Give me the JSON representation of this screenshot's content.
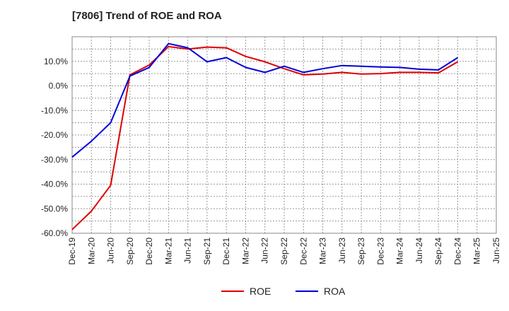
{
  "chart_data": {
    "type": "line",
    "title": "[7806]  Trend of ROE and ROA",
    "xlabel": "",
    "ylabel": "",
    "x": [
      "Dec-19",
      "Mar-20",
      "Jun-20",
      "Sep-20",
      "Dec-20",
      "Mar-21",
      "Jun-21",
      "Sep-21",
      "Dec-21",
      "Mar-22",
      "Jun-22",
      "Sep-22",
      "Dec-22",
      "Mar-23",
      "Jun-23",
      "Sep-23",
      "Dec-23",
      "Mar-24",
      "Jun-24",
      "Sep-24",
      "Dec-24",
      "Mar-25",
      "Jun-25"
    ],
    "ylim": [
      -60,
      20
    ],
    "yticks": [
      "-60.0%",
      "-50.0%",
      "-40.0%",
      "-30.0%",
      "-20.0%",
      "-10.0%",
      "0.0%",
      "10.0%"
    ],
    "ytick_values": [
      -60,
      -50,
      -40,
      -30,
      -20,
      -10,
      0,
      10
    ],
    "grid": true,
    "legend_position": "bottom",
    "series": [
      {
        "name": "ROE",
        "color": "#e00000",
        "values": [
          -58.5,
          -51,
          -40.5,
          4.5,
          8.5,
          16,
          15,
          15.8,
          15.5,
          12,
          9.8,
          7,
          4.5,
          4.8,
          5.5,
          4.8,
          5,
          5.5,
          5.5,
          5.3,
          9.8,
          null,
          null
        ]
      },
      {
        "name": "ROA",
        "color": "#0000dd",
        "values": [
          -29,
          -22.5,
          -15,
          4,
          7.5,
          17.2,
          15.5,
          9.8,
          11.5,
          7.5,
          5.5,
          8,
          5.5,
          7,
          8.3,
          8,
          7.7,
          7.5,
          6.8,
          6.5,
          11.5,
          null,
          null
        ]
      }
    ]
  }
}
